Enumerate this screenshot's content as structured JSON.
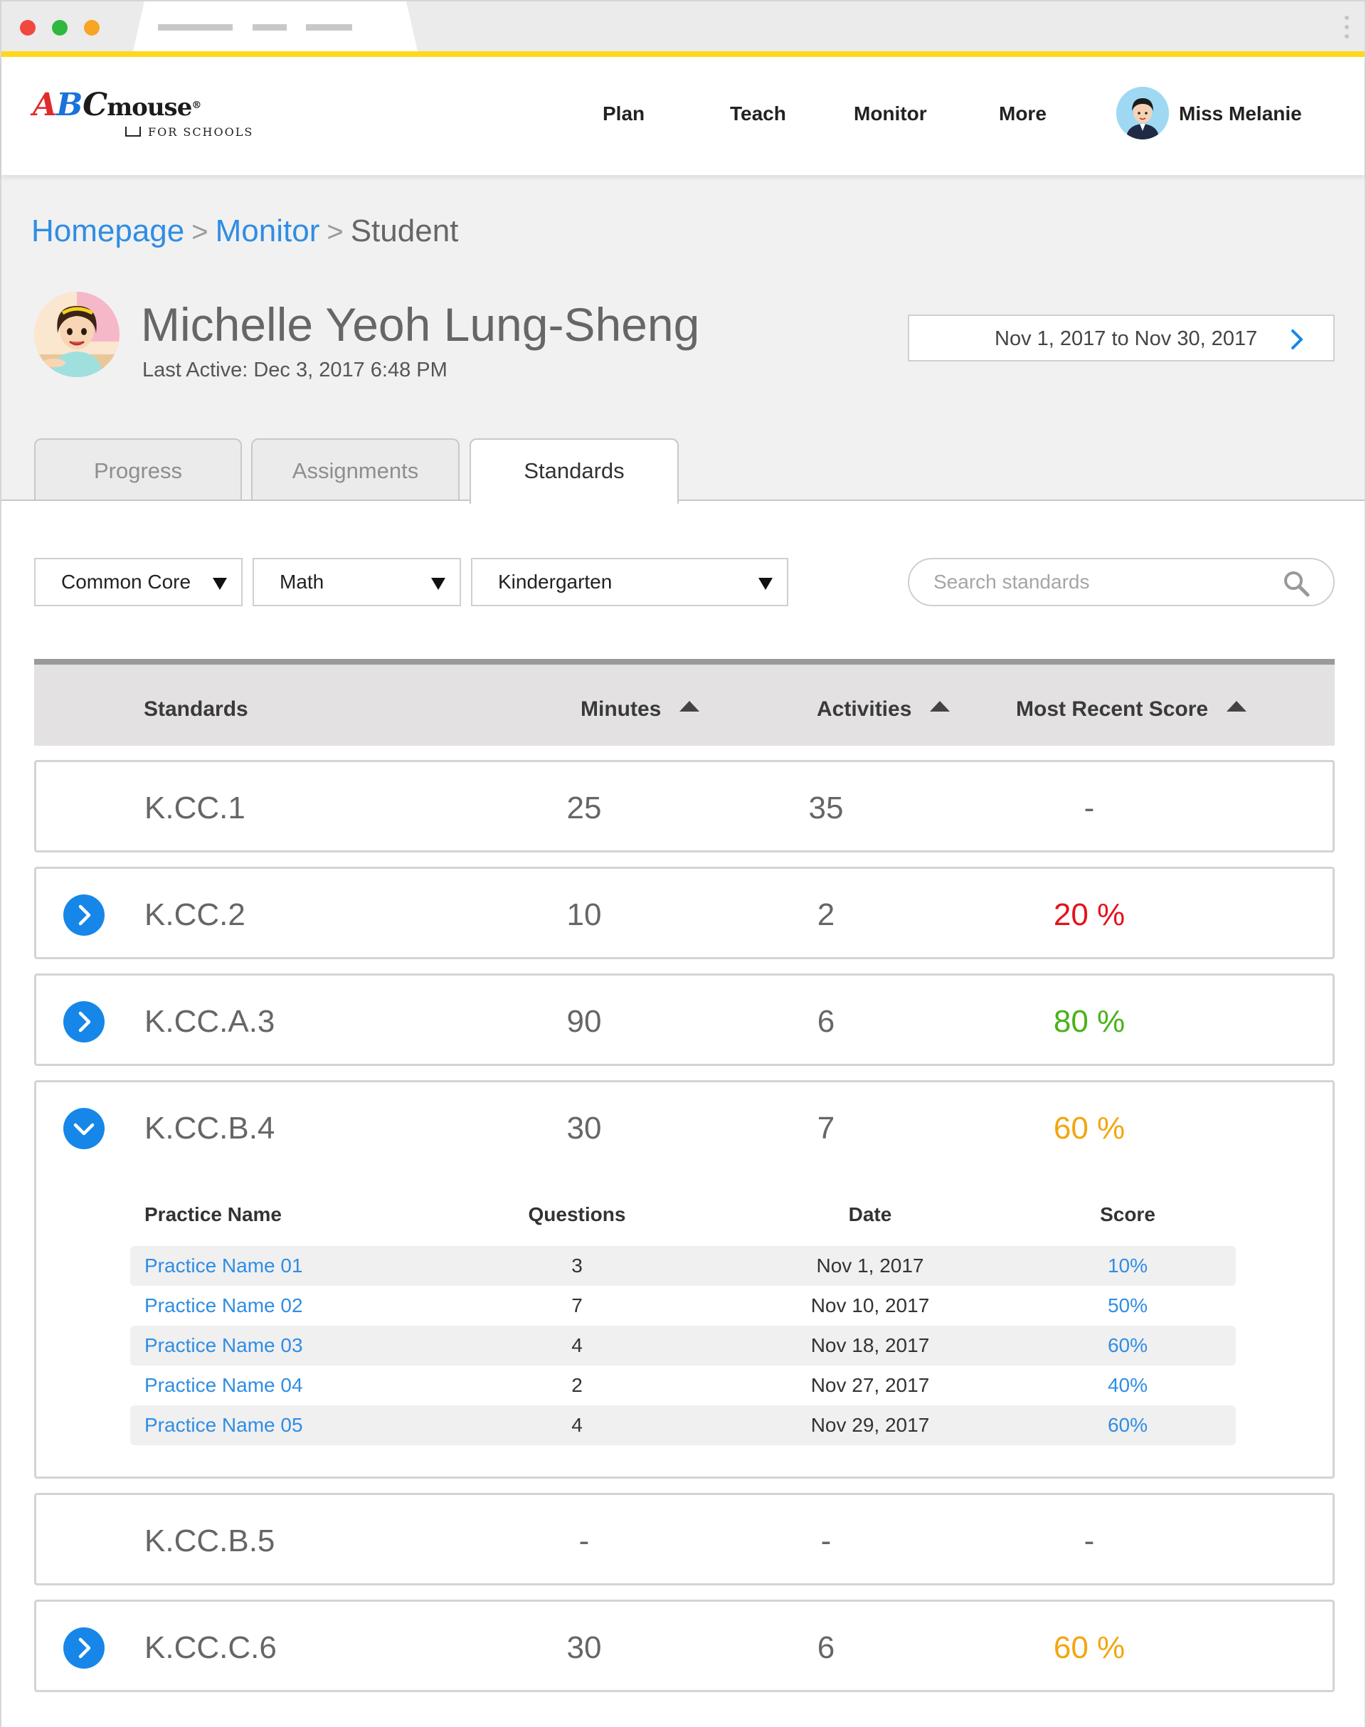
{
  "app": {
    "logo_text_a": "A",
    "logo_text_b": "B",
    "logo_text_c": "C",
    "logo_text_rest": "mouse",
    "logo_registered": "®",
    "logo_subtitle": "FOR SCHOOLS"
  },
  "nav": {
    "items": [
      {
        "label": "Plan"
      },
      {
        "label": "Teach"
      },
      {
        "label": "Monitor"
      },
      {
        "label": "More"
      }
    ],
    "user_name": "Miss Melanie"
  },
  "breadcrumb": {
    "items": [
      {
        "label": "Homepage"
      },
      {
        "label": "Monitor"
      },
      {
        "label": "Student"
      }
    ],
    "separator": ">"
  },
  "student": {
    "name": "Michelle Yeoh Lung-Sheng",
    "last_active": "Last Active: Dec 3, 2017  6:48 PM"
  },
  "date_range": {
    "label": "Nov 1, 2017 to Nov 30, 2017"
  },
  "tabs": [
    {
      "label": "Progress",
      "active": false
    },
    {
      "label": "Assignments",
      "active": false
    },
    {
      "label": "Standards",
      "active": true
    }
  ],
  "filters": {
    "framework": "Common Core",
    "subject": "Math",
    "grade": "Kindergarten"
  },
  "search": {
    "placeholder": "Search standards",
    "value": ""
  },
  "table": {
    "headers": {
      "standards": "Standards",
      "minutes": "Minutes",
      "activities": "Activities",
      "score": "Most Recent Score"
    },
    "rows": [
      {
        "standard": "K.CC.1",
        "minutes": "25",
        "activities": "35",
        "score": "-",
        "score_color": "#666666",
        "expandable": false
      },
      {
        "standard": "K.CC.2",
        "minutes": "10",
        "activities": "2",
        "score": "20 %",
        "score_color": "#e3131b",
        "expandable": true
      },
      {
        "standard": "K.CC.A.3",
        "minutes": "90",
        "activities": "6",
        "score": "80 %",
        "score_color": "#48b318",
        "expandable": true
      },
      {
        "standard": "K.CC.B.4",
        "minutes": "30",
        "activities": "7",
        "score": "60 %",
        "score_color": "#f2a60f",
        "expandable": true,
        "expanded": true
      },
      {
        "standard": "K.CC.B.5",
        "minutes": "-",
        "activities": "-",
        "score": "-",
        "score_color": "#666666",
        "expandable": false
      },
      {
        "standard": "K.CC.C.6",
        "minutes": "30",
        "activities": "6",
        "score": "60 %",
        "score_color": "#f2a60f",
        "expandable": true
      }
    ]
  },
  "practice": {
    "headers": {
      "name": "Practice Name",
      "questions": "Questions",
      "date": "Date",
      "score": "Score"
    },
    "rows": [
      {
        "name": "Practice Name 01",
        "questions": "3",
        "date": "Nov 1, 2017",
        "score": "10%"
      },
      {
        "name": "Practice Name 02",
        "questions": "7",
        "date": "Nov 10, 2017",
        "score": "50%"
      },
      {
        "name": "Practice Name 03",
        "questions": "4",
        "date": "Nov 18, 2017",
        "score": "60%"
      },
      {
        "name": "Practice Name 04",
        "questions": "2",
        "date": "Nov 27, 2017",
        "score": "40%"
      },
      {
        "name": "Practice Name 05",
        "questions": "4",
        "date": "Nov 29, 2017",
        "score": "60%"
      }
    ]
  },
  "colors": {
    "accent": "#1687e8",
    "link": "#2f8de4",
    "brand_yellow": "#ffd81e",
    "score_low": "#e3131b",
    "score_mid": "#f2a60f",
    "score_high": "#48b318"
  },
  "icons": {
    "expand": "chevron-right-icon",
    "collapse": "chevron-down-icon",
    "sort": "sort-up-icon",
    "search": "search-icon",
    "date_next": "chevron-right-icon",
    "dropdown": "caret-down-icon"
  }
}
